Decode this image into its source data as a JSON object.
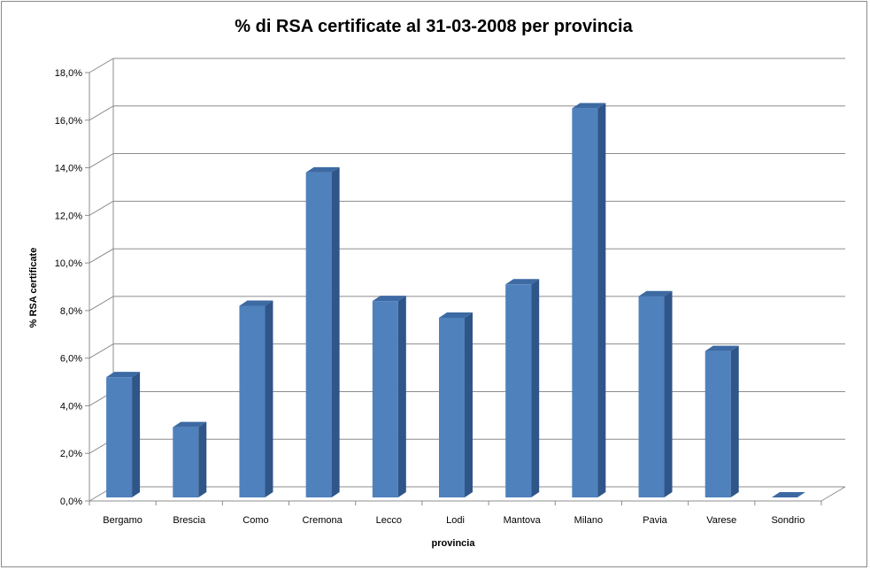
{
  "chart_data": {
    "type": "bar",
    "title": "% di RSA certificate al 31-03-2008 per provincia",
    "xlabel": "provincia",
    "ylabel": "% RSA certificate",
    "categories": [
      "Bergamo",
      "Brescia",
      "Como",
      "Cremona",
      "Lecco",
      "Lodi",
      "Mantova",
      "Milano",
      "Pavia",
      "Varese",
      "Sondrio"
    ],
    "values": [
      5.2,
      3.1,
      8.2,
      13.8,
      8.4,
      7.7,
      9.1,
      16.5,
      8.6,
      6.3,
      0.0
    ],
    "ylim": [
      0,
      18
    ],
    "yticks": [
      "0,0%",
      "2,0%",
      "4,0%",
      "6,0%",
      "8,0%",
      "10,0%",
      "12,0%",
      "14,0%",
      "16,0%",
      "18,0%"
    ],
    "grid": true,
    "legend": "none",
    "colors": {
      "bar_front": "#4f81bd",
      "bar_side": "#2f5589",
      "bar_top": "#3d6aa3",
      "grid": "#8c8c8c"
    }
  }
}
